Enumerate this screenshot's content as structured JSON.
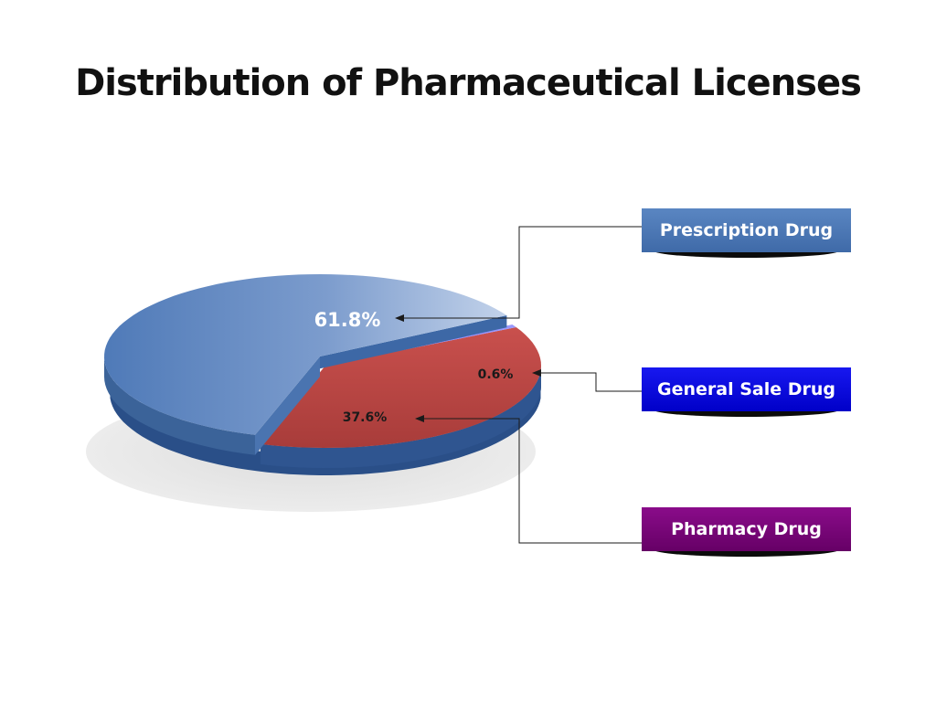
{
  "chart_data": {
    "type": "pie",
    "title": "Distribution of Pharmaceutical Licenses",
    "categories": [
      "Prescription Drug",
      "General Sale Drug",
      "Pharmacy Drug"
    ],
    "values": [
      61.8,
      0.6,
      37.6
    ],
    "data_labels": [
      "61.8%",
      "0.6%",
      "37.6%"
    ],
    "colors": [
      "#4f7bbb",
      "#7f7fff",
      "#c0504d"
    ],
    "legend_colors": [
      "#4a76b6",
      "#0a0ae0",
      "#7a087a"
    ],
    "legend_position": "right",
    "style": "3d-exploded"
  }
}
